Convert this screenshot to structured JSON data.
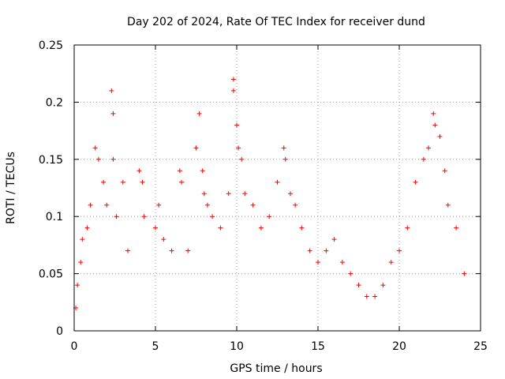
{
  "chart_data": {
    "type": "scatter",
    "title": "Day 202 of 2024, Rate Of TEC Index for receiver dund",
    "xlabel": "GPS time / hours",
    "ylabel": "ROTI / TECUs",
    "xlim": [
      0,
      25
    ],
    "ylim": [
      0,
      0.25
    ],
    "x_ticks": [
      "0",
      "5",
      "10",
      "15",
      "20",
      "25"
    ],
    "y_ticks": [
      "0",
      "0.05",
      "0.1",
      "0.15",
      "0.2",
      "0.25"
    ],
    "grid": true,
    "marker": "+",
    "color": "#ff0000",
    "series": [
      {
        "name": "ROTI",
        "points": [
          [
            0.1,
            0.02
          ],
          [
            0.2,
            0.04
          ],
          [
            0.4,
            0.06
          ],
          [
            0.5,
            0.08
          ],
          [
            0.8,
            0.09
          ],
          [
            1.0,
            0.11
          ],
          [
            1.3,
            0.16
          ],
          [
            1.5,
            0.15
          ],
          [
            1.8,
            0.13
          ],
          [
            2.0,
            0.11
          ],
          [
            2.3,
            0.21
          ],
          [
            2.4,
            0.19
          ],
          [
            2.4,
            0.15
          ],
          [
            2.6,
            0.1
          ],
          [
            3.0,
            0.13
          ],
          [
            3.3,
            0.07
          ],
          [
            4.0,
            0.14
          ],
          [
            4.2,
            0.13
          ],
          [
            4.3,
            0.1
          ],
          [
            5.0,
            0.09
          ],
          [
            5.2,
            0.11
          ],
          [
            5.5,
            0.08
          ],
          [
            6.0,
            0.07
          ],
          [
            6.5,
            0.14
          ],
          [
            6.6,
            0.13
          ],
          [
            7.0,
            0.07
          ],
          [
            7.5,
            0.16
          ],
          [
            7.7,
            0.19
          ],
          [
            7.9,
            0.14
          ],
          [
            8.0,
            0.12
          ],
          [
            8.2,
            0.11
          ],
          [
            8.5,
            0.1
          ],
          [
            9.0,
            0.09
          ],
          [
            9.5,
            0.12
          ],
          [
            9.8,
            0.22
          ],
          [
            9.8,
            0.21
          ],
          [
            10.0,
            0.18
          ],
          [
            10.1,
            0.16
          ],
          [
            10.3,
            0.15
          ],
          [
            10.5,
            0.12
          ],
          [
            11.0,
            0.11
          ],
          [
            11.5,
            0.09
          ],
          [
            12.0,
            0.1
          ],
          [
            12.5,
            0.13
          ],
          [
            12.9,
            0.16
          ],
          [
            13.0,
            0.15
          ],
          [
            13.3,
            0.12
          ],
          [
            13.6,
            0.11
          ],
          [
            14.0,
            0.09
          ],
          [
            14.5,
            0.07
          ],
          [
            15.0,
            0.06
          ],
          [
            15.5,
            0.07
          ],
          [
            16.0,
            0.08
          ],
          [
            16.5,
            0.06
          ],
          [
            17.0,
            0.05
          ],
          [
            17.5,
            0.04
          ],
          [
            18.0,
            0.03
          ],
          [
            18.5,
            0.03
          ],
          [
            19.0,
            0.04
          ],
          [
            19.5,
            0.06
          ],
          [
            20.0,
            0.07
          ],
          [
            20.5,
            0.09
          ],
          [
            21.0,
            0.13
          ],
          [
            21.5,
            0.15
          ],
          [
            21.8,
            0.16
          ],
          [
            22.1,
            0.19
          ],
          [
            22.2,
            0.18
          ],
          [
            22.5,
            0.17
          ],
          [
            22.8,
            0.14
          ],
          [
            23.0,
            0.11
          ],
          [
            23.5,
            0.09
          ],
          [
            24.0,
            0.05
          ]
        ]
      }
    ]
  }
}
